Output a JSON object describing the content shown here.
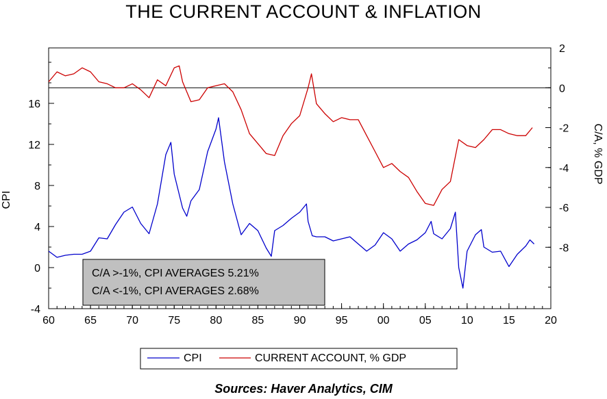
{
  "chart_data": {
    "type": "line",
    "title": "THE CURRENT ACCOUNT & INFLATION",
    "ylabel_left": "CPI",
    "ylabel_right": "C/A, % GDP",
    "source": "Sources:  Haver Analytics, CIM",
    "x_range": [
      1960,
      2020
    ],
    "x_tick_values": [
      1960,
      1965,
      1970,
      1975,
      1980,
      1985,
      1990,
      1995,
      2000,
      2005,
      2010,
      2015,
      2020
    ],
    "x_tick_labels": [
      "60",
      "65",
      "70",
      "75",
      "80",
      "85",
      "90",
      "95",
      "00",
      "05",
      "10",
      "15",
      "20"
    ],
    "left_axis": {
      "range": [
        -4,
        21.4
      ],
      "tick_values": [
        -4,
        0,
        4,
        8,
        12,
        16
      ],
      "tick_labels": [
        "-4",
        "0",
        "4",
        "8",
        "12",
        "16"
      ]
    },
    "right_axis": {
      "range": [
        -11.08,
        2
      ],
      "tick_values": [
        -8,
        -6,
        -4,
        -2,
        0,
        2
      ],
      "tick_labels": [
        "-8",
        "-6",
        "-4",
        "-2",
        "0",
        "2"
      ]
    },
    "grid": false,
    "zero_line_axis": "right",
    "legend_position": "bottom",
    "annotation": [
      "C/A >-1%, CPI AVERAGES 5.21%",
      "C/A <-1%, CPI AVERAGES 2.68%"
    ],
    "series": [
      {
        "name": "CPI",
        "axis": "left",
        "color": "#0000cc",
        "x": [
          1960,
          1961,
          1962,
          1963,
          1964,
          1965,
          1966,
          1967,
          1968,
          1969,
          1970,
          1971,
          1972,
          1973,
          1974,
          1974.6,
          1975,
          1976,
          1976.5,
          1977,
          1978,
          1979,
          1980,
          1980.3,
          1981,
          1982,
          1982.8,
          1983,
          1984,
          1985,
          1986,
          1986.6,
          1987,
          1988,
          1989,
          1990,
          1990.8,
          1991,
          1991.5,
          1992,
          1993,
          1994,
          1995,
          1996,
          1997,
          1998,
          1999,
          2000,
          2001,
          2002,
          2003,
          2004,
          2005,
          2005.7,
          2006,
          2007,
          2008,
          2008.6,
          2009,
          2009.5,
          2010,
          2011,
          2011.7,
          2012,
          2013,
          2014,
          2015,
          2016,
          2017,
          2017.5,
          2018
        ],
        "y": [
          1.6,
          1.0,
          1.2,
          1.3,
          1.3,
          1.6,
          2.9,
          2.8,
          4.2,
          5.4,
          5.9,
          4.3,
          3.3,
          6.2,
          11.0,
          12.2,
          9.1,
          5.8,
          5.0,
          6.5,
          7.6,
          11.3,
          13.5,
          14.6,
          10.3,
          6.2,
          3.8,
          3.2,
          4.3,
          3.6,
          1.9,
          1.1,
          3.6,
          4.1,
          4.8,
          5.4,
          6.2,
          4.5,
          3.1,
          3.0,
          3.0,
          2.6,
          2.8,
          3.0,
          2.3,
          1.6,
          2.2,
          3.4,
          2.8,
          1.6,
          2.3,
          2.7,
          3.4,
          4.5,
          3.3,
          2.8,
          3.8,
          5.4,
          0.0,
          -2.0,
          1.6,
          3.2,
          3.7,
          2.0,
          1.5,
          1.6,
          0.1,
          1.3,
          2.1,
          2.7,
          2.3
        ]
      },
      {
        "name": "CURRENT ACCOUNT, % GDP",
        "axis": "right",
        "color": "#cc0000",
        "x": [
          1960,
          1961,
          1962,
          1963,
          1964,
          1965,
          1966,
          1967,
          1968,
          1969,
          1970,
          1971,
          1972,
          1973,
          1974,
          1975,
          1975.6,
          1976,
          1977,
          1978,
          1979,
          1980,
          1981,
          1982,
          1983,
          1984,
          1985,
          1986,
          1987,
          1988,
          1989,
          1990,
          1991,
          1991.4,
          1992,
          1993,
          1994,
          1995,
          1996,
          1997,
          1998,
          1999,
          2000,
          2001,
          2002,
          2003,
          2004,
          2005,
          2006,
          2007,
          2008,
          2009,
          2010,
          2011,
          2012,
          2013,
          2014,
          2015,
          2016,
          2017,
          2017.8
        ],
        "y": [
          0.3,
          0.8,
          0.6,
          0.7,
          1.0,
          0.8,
          0.3,
          0.2,
          0.0,
          0.0,
          0.2,
          -0.1,
          -0.5,
          0.4,
          0.1,
          1.0,
          1.1,
          0.3,
          -0.7,
          -0.6,
          0.0,
          0.1,
          0.2,
          -0.2,
          -1.1,
          -2.3,
          -2.8,
          -3.3,
          -3.4,
          -2.4,
          -1.8,
          -1.4,
          0.0,
          0.7,
          -0.8,
          -1.3,
          -1.7,
          -1.5,
          -1.6,
          -1.6,
          -2.4,
          -3.2,
          -4.0,
          -3.8,
          -4.2,
          -4.5,
          -5.2,
          -5.8,
          -5.9,
          -5.1,
          -4.7,
          -2.6,
          -2.9,
          -3.0,
          -2.6,
          -2.1,
          -2.1,
          -2.3,
          -2.4,
          -2.4,
          -2.0
        ]
      }
    ]
  }
}
